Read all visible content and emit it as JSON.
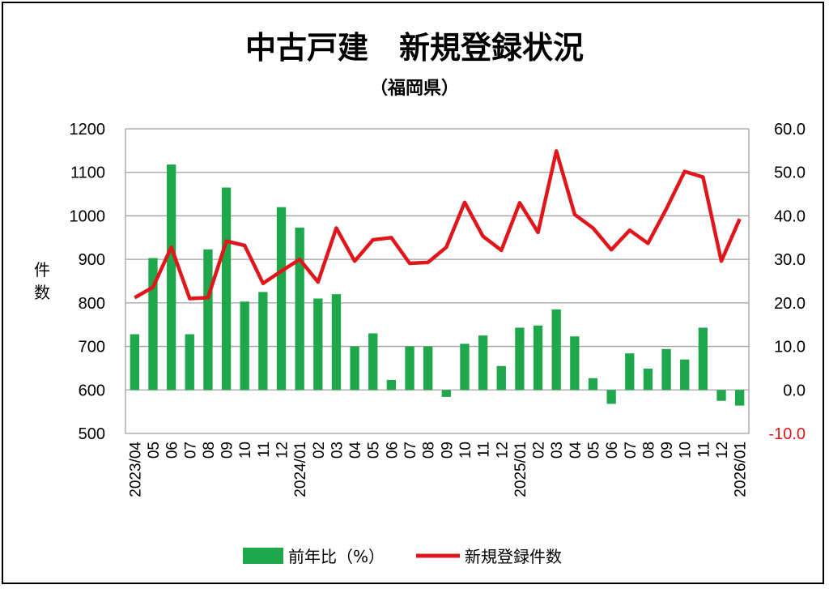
{
  "chart_data": {
    "type": "bar+line",
    "title": "中古戸建　新規登録状況",
    "subtitle": "（福岡県）",
    "ylabel": "件数",
    "ylim_left": [
      500,
      1200
    ],
    "yticks_left": [
      "500",
      "600",
      "700",
      "800",
      "900",
      "1000",
      "1100",
      "1200"
    ],
    "ylim_right": [
      -10,
      60
    ],
    "yticks_right": [
      "-10.0",
      "0.0",
      "10.0",
      "20.0",
      "30.0",
      "40.0",
      "50.0",
      "60.0"
    ],
    "categories": [
      "2023/04",
      "05",
      "06",
      "07",
      "08",
      "09",
      "10",
      "11",
      "12",
      "2024/01",
      "02",
      "03",
      "04",
      "05",
      "06",
      "07",
      "08",
      "09",
      "10",
      "11",
      "12",
      "2025/01",
      "02",
      "03",
      "04",
      "05",
      "06",
      "07",
      "08",
      "09",
      "10",
      "11",
      "12",
      "2026/01"
    ],
    "series": [
      {
        "name": "前年比（%）",
        "type": "bar",
        "axis": "right",
        "color": "#1ea84b",
        "values": [
          12.8,
          30.3,
          51.8,
          12.8,
          32.3,
          46.5,
          20.3,
          22.5,
          42.0,
          37.3,
          21.0,
          22.0,
          10.0,
          13.0,
          2.3,
          10.0,
          10.0,
          -1.6,
          10.6,
          12.5,
          5.5,
          14.3,
          14.8,
          18.5,
          12.3,
          2.7,
          -3.2,
          8.4,
          4.9,
          9.4,
          7.0,
          14.3,
          -2.5,
          -3.6
        ]
      },
      {
        "name": "新規登録件数",
        "type": "line",
        "axis": "left",
        "color": "#e0161b",
        "values": [
          812,
          836,
          928,
          810,
          812,
          942,
          932,
          845,
          873,
          900,
          848,
          972,
          896,
          945,
          950,
          891,
          893,
          928,
          1031,
          953,
          921,
          1030,
          962,
          1149,
          1003,
          972,
          922,
          967,
          937,
          1016,
          1102,
          1089,
          896,
          993
        ]
      }
    ],
    "grid": "horizontal",
    "legend_position": "bottom"
  },
  "legend": {
    "bar_label": "前年比（%）",
    "line_label": "新規登録件数"
  }
}
